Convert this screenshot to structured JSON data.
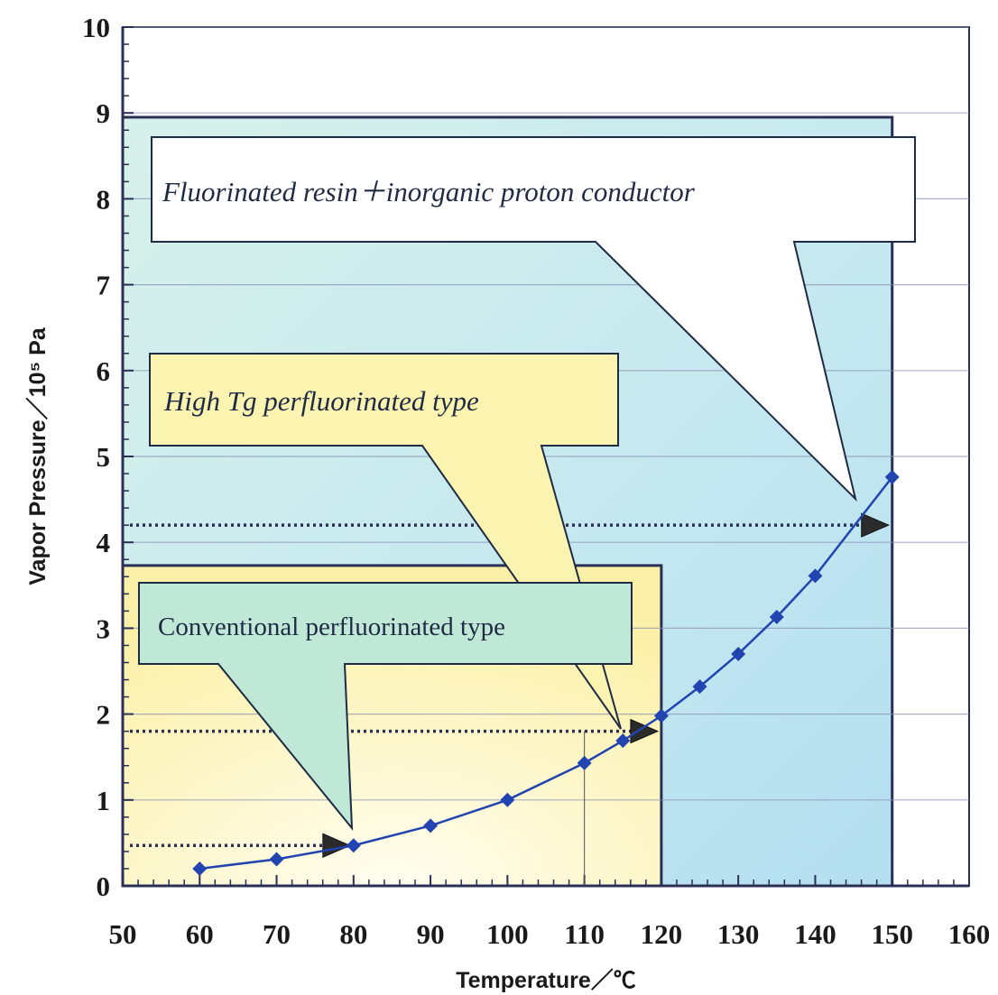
{
  "chart_data": {
    "type": "line",
    "xlabel": "Temperature／℃",
    "ylabel": "Vapor Pressure／10⁵ Pa",
    "xlim": [
      50,
      160
    ],
    "ylim": [
      0,
      10
    ],
    "x_ticks": [
      50,
      60,
      70,
      80,
      90,
      100,
      110,
      120,
      130,
      140,
      150,
      160
    ],
    "y_ticks": [
      0,
      1,
      2,
      3,
      4,
      5,
      6,
      7,
      8,
      9,
      10
    ],
    "grid": true,
    "series": [
      {
        "x": [
          60,
          70,
          80,
          90,
          100,
          110,
          115,
          120,
          125,
          130,
          135,
          140,
          150
        ],
        "y": [
          0.2,
          0.31,
          0.47,
          0.7,
          1.0,
          1.43,
          1.69,
          1.98,
          2.32,
          2.7,
          3.13,
          3.61,
          4.76
        ],
        "color": "#2244b0"
      }
    ],
    "regions": [
      {
        "label": "Fluorinated resin＋inorganic proton conductor",
        "x_max": 150,
        "y_max": 8.95,
        "color": "#b9e3ef",
        "marker_temp": 150,
        "marker_pressure": 4.2
      },
      {
        "label": "High Tg perfluorinated type",
        "x_max": 120,
        "y_max": 3.73,
        "color": "#fbf2b0",
        "marker_temp": 120,
        "marker_pressure": 1.8
      },
      {
        "label": "Conventional perfluorinated type",
        "x_max": 80,
        "y_max": 0.47,
        "color": "#bfe9d6",
        "marker_temp": 80,
        "marker_pressure": 0.47
      }
    ]
  }
}
